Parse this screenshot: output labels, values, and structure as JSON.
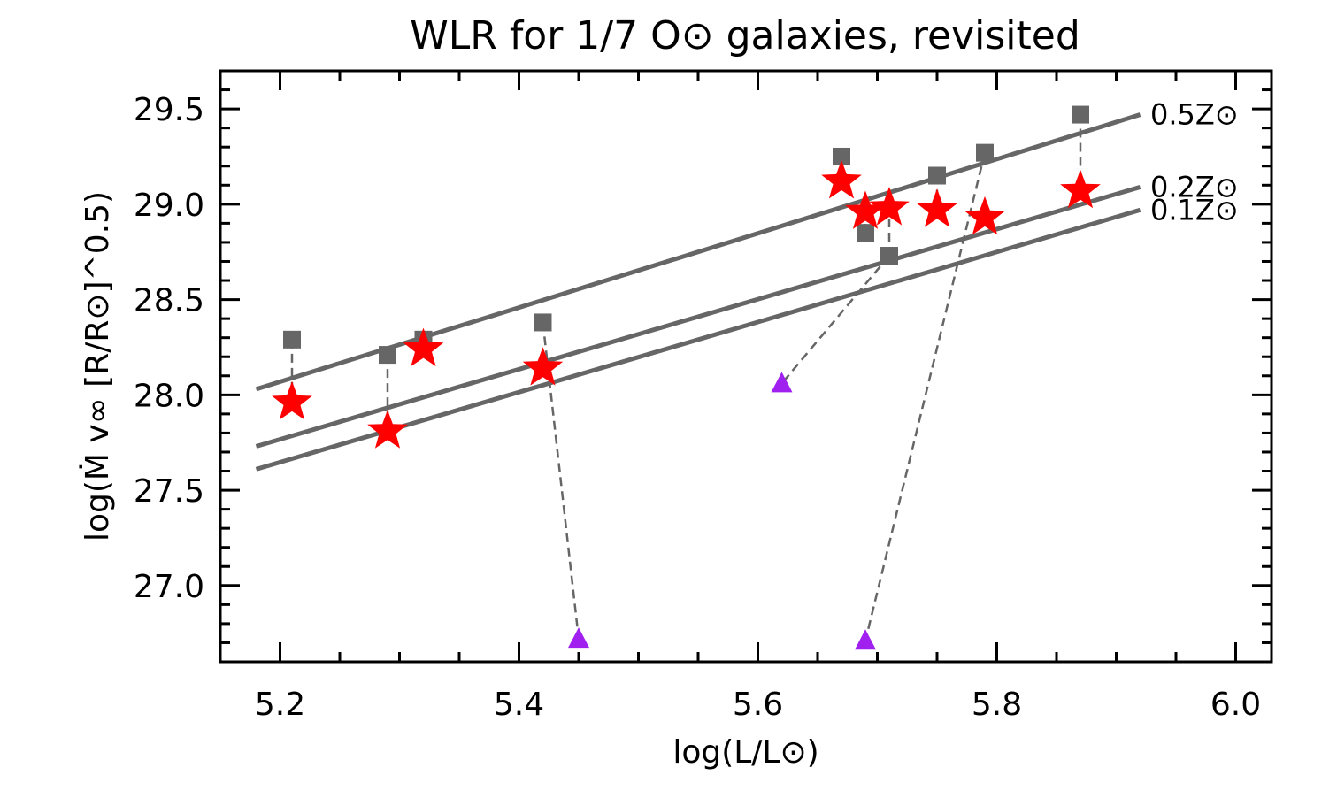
{
  "chart_data": {
    "type": "scatter",
    "title": "WLR for 1/7 O⊙ galaxies, revisited",
    "xlabel": "log(L/L⊙)",
    "ylabel": "log(Ṁ v∞ [R/R⊙]^0.5)",
    "xlim": [
      5.15,
      6.03
    ],
    "ylim": [
      26.6,
      29.7
    ],
    "x_ticks": [
      5.2,
      5.4,
      5.6,
      5.8,
      6.0
    ],
    "x_tick_labels": [
      "5.2",
      "5.4",
      "5.6",
      "5.8",
      "6.0"
    ],
    "y_ticks": [
      27.0,
      27.5,
      28.0,
      28.5,
      29.0,
      29.5
    ],
    "y_tick_labels": [
      "27.0",
      "27.5",
      "28.0",
      "28.5",
      "29.0",
      "29.5"
    ],
    "colors": {
      "reference_lines": "#666666",
      "squares": "#666666",
      "stars": "#ff0000",
      "triangles": "#a020f0",
      "connectors": "#666666"
    },
    "reference_lines": [
      {
        "label": "0.5Z⊙",
        "x": [
          5.18,
          5.92
        ],
        "y": [
          28.03,
          29.47
        ]
      },
      {
        "label": "0.2Z⊙",
        "x": [
          5.18,
          5.92
        ],
        "y": [
          27.73,
          29.09
        ]
      },
      {
        "label": "0.1Z⊙",
        "x": [
          5.18,
          5.92
        ],
        "y": [
          27.61,
          28.97
        ]
      }
    ],
    "squares": [
      {
        "x": 5.21,
        "y": 28.29
      },
      {
        "x": 5.29,
        "y": 28.21
      },
      {
        "x": 5.32,
        "y": 28.29
      },
      {
        "x": 5.42,
        "y": 28.38
      },
      {
        "x": 5.67,
        "y": 29.25
      },
      {
        "x": 5.69,
        "y": 28.85
      },
      {
        "x": 5.71,
        "y": 28.73
      },
      {
        "x": 5.75,
        "y": 29.15
      },
      {
        "x": 5.79,
        "y": 29.27
      },
      {
        "x": 5.87,
        "y": 29.47
      }
    ],
    "stars": [
      {
        "x": 5.21,
        "y": 27.96
      },
      {
        "x": 5.29,
        "y": 27.81
      },
      {
        "x": 5.32,
        "y": 28.24
      },
      {
        "x": 5.42,
        "y": 28.14
      },
      {
        "x": 5.67,
        "y": 29.12
      },
      {
        "x": 5.69,
        "y": 28.96
      },
      {
        "x": 5.71,
        "y": 28.98
      },
      {
        "x": 5.75,
        "y": 28.97
      },
      {
        "x": 5.79,
        "y": 28.93
      },
      {
        "x": 5.87,
        "y": 29.07
      }
    ],
    "triangles": [
      {
        "x": 5.45,
        "y": 26.72
      },
      {
        "x": 5.62,
        "y": 28.06
      },
      {
        "x": 5.69,
        "y": 26.71
      }
    ],
    "connectors": [
      {
        "from": [
          5.21,
          28.29
        ],
        "to": [
          5.21,
          27.96
        ]
      },
      {
        "from": [
          5.29,
          28.21
        ],
        "to": [
          5.29,
          27.81
        ]
      },
      {
        "from": [
          5.42,
          28.38
        ],
        "to": [
          5.45,
          26.72
        ]
      },
      {
        "from": [
          5.71,
          28.73
        ],
        "to": [
          5.62,
          28.06
        ]
      },
      {
        "from": [
          5.69,
          28.85
        ],
        "to": [
          5.69,
          28.96
        ]
      },
      {
        "from": [
          5.71,
          28.73
        ],
        "to": [
          5.71,
          28.98
        ]
      },
      {
        "from": [
          5.75,
          29.15
        ],
        "to": [
          5.75,
          28.97
        ]
      },
      {
        "from": [
          5.79,
          29.27
        ],
        "to": [
          5.69,
          26.71
        ]
      },
      {
        "from": [
          5.87,
          29.47
        ],
        "to": [
          5.87,
          29.07
        ]
      }
    ]
  }
}
